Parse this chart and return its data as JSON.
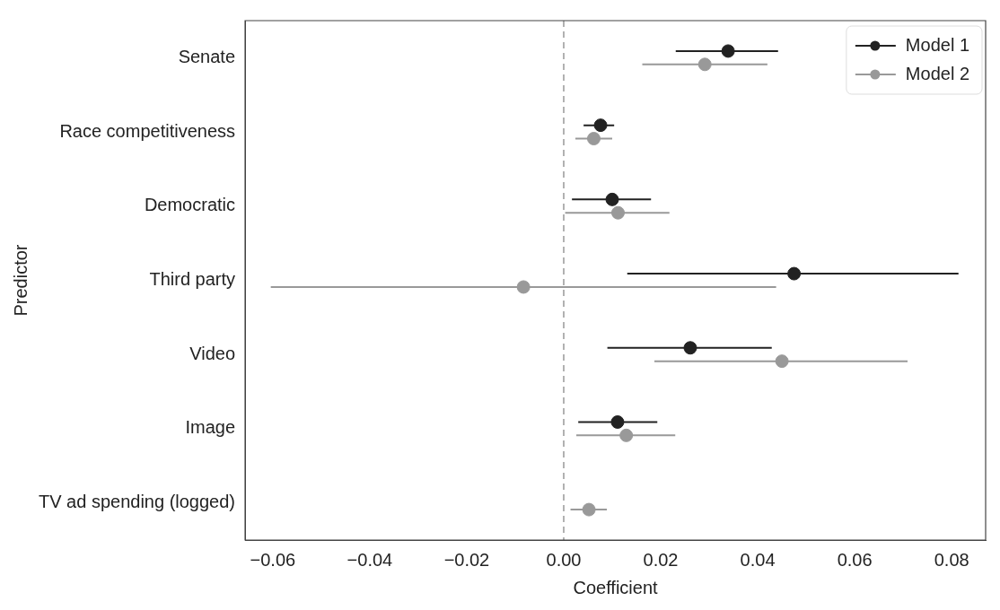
{
  "chart_data": {
    "type": "scatter",
    "xlabel": "Coefficient",
    "ylabel": "Predictor",
    "categories": [
      "Senate",
      "Race competitiveness",
      "Democratic",
      "Third party",
      "Video",
      "Image",
      "TV ad spending (logged)"
    ],
    "series": [
      {
        "name": "Model 1",
        "color": "#222222",
        "values": [
          0.0339,
          0.0076,
          0.01,
          0.0475,
          0.0261,
          0.0111,
          null
        ],
        "errors": [
          [
            0.0231,
            0.0442
          ],
          [
            0.0041,
            0.0104
          ],
          [
            0.0017,
            0.018
          ],
          [
            0.0131,
            0.0814
          ],
          [
            0.009,
            0.0429
          ],
          [
            0.003,
            0.0193
          ],
          null
        ]
      },
      {
        "name": "Model 2",
        "color": "#999999",
        "values": [
          0.0291,
          0.0062,
          0.0112,
          -0.0083,
          0.045,
          0.0129,
          0.0052
        ],
        "errors": [
          [
            0.0162,
            0.042
          ],
          [
            0.0024,
            0.01
          ],
          [
            0.0003,
            0.0218
          ],
          [
            -0.0604,
            0.0438
          ],
          [
            0.0187,
            0.0709
          ],
          [
            0.0026,
            0.023
          ],
          [
            0.0014,
            0.0089
          ]
        ]
      }
    ],
    "orientation": "horizontal",
    "xlim": [
      -0.0657,
      0.087
    ],
    "xticks": [
      {
        "value": -0.06,
        "label": "−0.06"
      },
      {
        "value": -0.04,
        "label": "−0.04"
      },
      {
        "value": -0.02,
        "label": "−0.02"
      },
      {
        "value": 0,
        "label": "0.00"
      },
      {
        "value": 0.02,
        "label": "0.02"
      },
      {
        "value": 0.04,
        "label": "0.04"
      },
      {
        "value": 0.06,
        "label": "0.06"
      },
      {
        "value": 0.08,
        "label": "0.08"
      }
    ],
    "ref_lines": [
      {
        "axis": "x",
        "value": 0,
        "color": "#999999",
        "line_style": "dashed"
      }
    ],
    "grid": false,
    "legend": "top right",
    "marker": "circle"
  }
}
